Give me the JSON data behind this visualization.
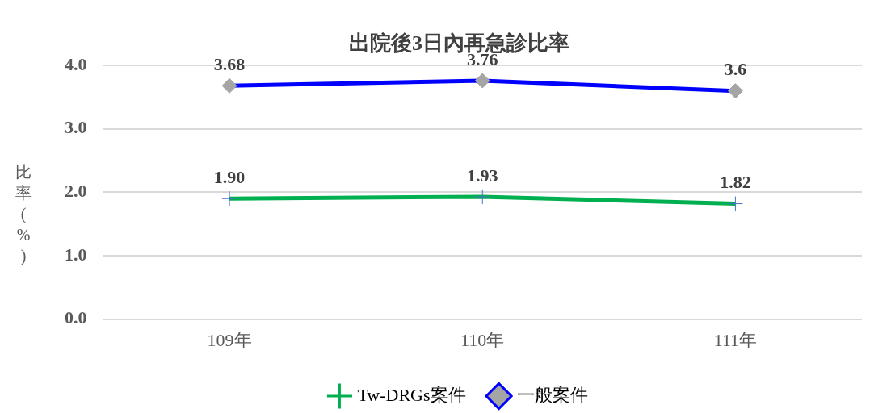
{
  "chart_data": {
    "type": "line",
    "title": "出院後3日內再急診比率",
    "ylabel": "比率(%)",
    "categories": [
      "109年",
      "110年",
      "111年"
    ],
    "series": [
      {
        "name": "Tw-DRGs案件",
        "color": "#00b050",
        "colors": [
          "#4472c4",
          "#4472c4",
          "#4472c4"
        ],
        "marker": "cross",
        "values": [
          1.9,
          1.93,
          1.82
        ],
        "value_labels": [
          "1.90",
          "1.93",
          "1.82"
        ]
      },
      {
        "name": "一般案件",
        "color": "#0000ff",
        "colors": [
          "#a5a5a5",
          "#a5a5a5",
          "#a5a5a5"
        ],
        "marker": "diamond",
        "values": [
          3.68,
          3.76,
          3.6
        ],
        "value_labels": [
          "3.68",
          "3.76",
          "3.6"
        ]
      }
    ],
    "ylim": [
      0,
      4
    ],
    "yticks": [
      {
        "value": 0,
        "label": "0.0"
      },
      {
        "value": 1,
        "label": "1.0"
      },
      {
        "value": 2,
        "label": "2.0"
      },
      {
        "value": 3,
        "label": "3.0"
      },
      {
        "value": 4,
        "label": "4.0"
      }
    ],
    "grid": "y",
    "legend": "bottom"
  }
}
